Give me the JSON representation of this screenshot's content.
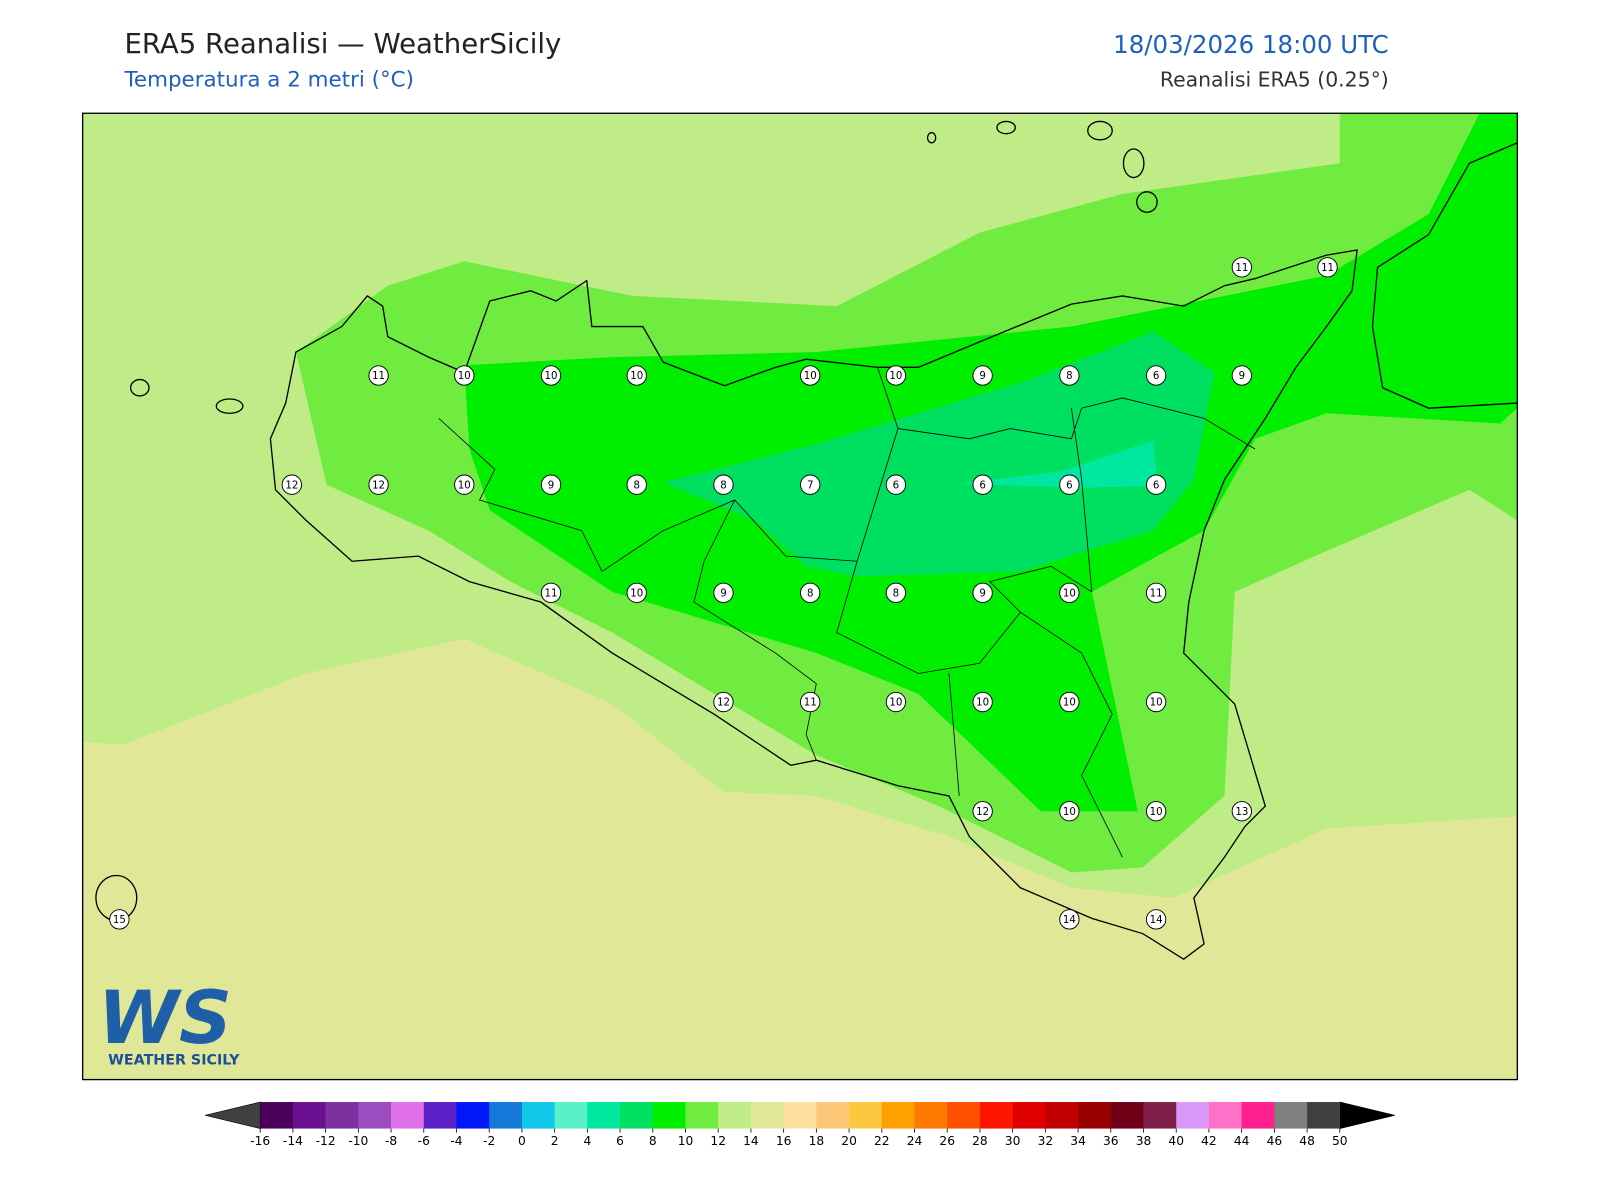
{
  "header": {
    "title": "ERA5 Reanalisi — WeatherSicily",
    "subtitle": "Temperatura a 2 metri (°C)",
    "datetime": "18/03/2026 18:00 UTC",
    "source": "Reanalisi ERA5 (0.25°)"
  },
  "stations": {
    "values": [
      11,
      11,
      11,
      10,
      10,
      10,
      10,
      10,
      9,
      8,
      6,
      9,
      12,
      12,
      10,
      9,
      8,
      8,
      7,
      6,
      6,
      6,
      6,
      11,
      10,
      9,
      8,
      8,
      9,
      10,
      11,
      12,
      11,
      10,
      10,
      10,
      10,
      12,
      10,
      10,
      13,
      15,
      14,
      14
    ]
  },
  "colorbar": {
    "ticks": [
      -16,
      -14,
      -12,
      -10,
      -8,
      -6,
      -4,
      -2,
      0,
      2,
      4,
      6,
      8,
      10,
      12,
      14,
      16,
      18,
      20,
      22,
      24,
      26,
      28,
      30,
      32,
      34,
      36,
      38,
      40,
      42,
      44,
      46,
      48,
      50
    ],
    "colors": [
      "#4b0059",
      "#6a0f8f",
      "#7e2fa0",
      "#9c4ec0",
      "#e070e8",
      "#5b20c8",
      "#0018f8",
      "#1478d8",
      "#10c8e8",
      "#58f0c8",
      "#00e8a0",
      "#00e060",
      "#00ee00",
      "#70ec40",
      "#c0ec88",
      "#e0e898",
      "#ffe0a0",
      "#fcc878",
      "#fcc840",
      "#ffa000",
      "#ff7800",
      "#ff5000",
      "#ff1400",
      "#e00000",
      "#c00000",
      "#980000",
      "#700018",
      "#802048",
      "#d898f8",
      "#ff70c8",
      "#ff2090",
      "#808080",
      "#404040"
    ],
    "under_color": "#404040",
    "over_color": "#000000"
  },
  "logo": {
    "mark": "WS",
    "text": "WEATHER SICILY"
  }
}
